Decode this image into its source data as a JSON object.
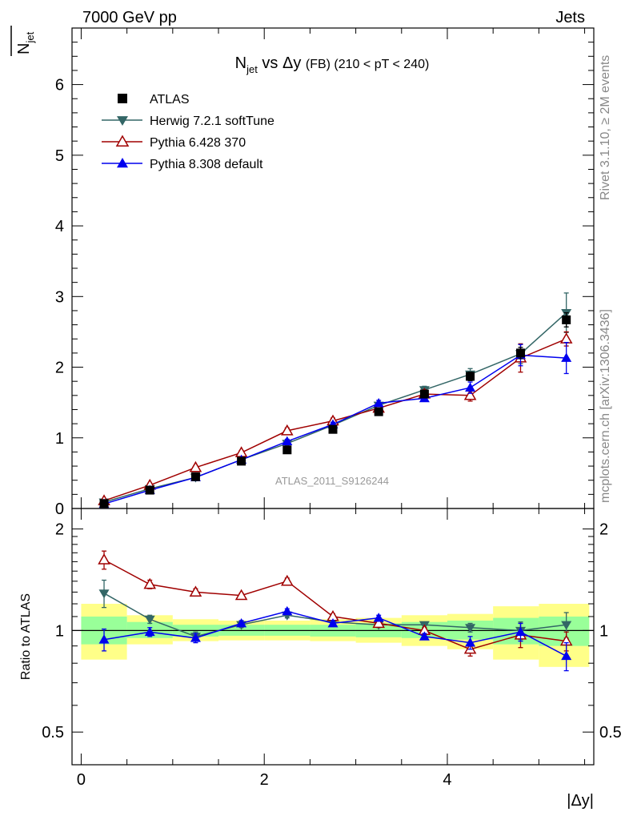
{
  "header": {
    "left": "7000 GeV pp",
    "right": "Jets"
  },
  "side_labels": {
    "rivet": "Rivet 3.1.10, ≥ 2M events",
    "mcplots": "mcplots.cern.ch [arXiv:1306.3436]"
  },
  "chart_data": [
    {
      "type": "line",
      "panel": "main",
      "title": {
        "main": "N",
        "sub": "jet",
        "mid": " vs Δy ",
        "small": "(FB)",
        "range": " (210 < pT < 240)"
      },
      "ylabel": {
        "main": "N",
        "sub": "jet"
      },
      "watermark": "ATLAS_2011_S9126244",
      "xlim": [
        -0.1,
        5.6
      ],
      "ylim": [
        0,
        6.8
      ],
      "yticks": [
        0,
        1,
        2,
        3,
        4,
        5,
        6
      ],
      "yticklabels": [
        "0",
        "1",
        "2",
        "3",
        "4",
        "5",
        "6"
      ],
      "legend_position": "top-left",
      "series": [
        {
          "name": "ATLAS",
          "color": "#000000",
          "marker": "square",
          "x": [
            0.25,
            0.75,
            1.25,
            1.75,
            2.25,
            2.75,
            3.25,
            3.75,
            4.25,
            4.8,
            5.3
          ],
          "y": [
            0.07,
            0.26,
            0.45,
            0.67,
            0.83,
            1.12,
            1.37,
            1.62,
            1.87,
            2.2,
            2.67
          ],
          "err": [
            0.01,
            0.01,
            0.02,
            0.02,
            0.03,
            0.03,
            0.04,
            0.05,
            0.06,
            0.08,
            0.1
          ]
        },
        {
          "name": "Herwig 7.2.1 softTune",
          "color": "#336666",
          "marker": "triangle-down",
          "x": [
            0.25,
            0.75,
            1.25,
            1.75,
            2.25,
            2.75,
            3.25,
            3.75,
            4.25,
            4.8,
            5.3
          ],
          "y": [
            0.09,
            0.28,
            0.44,
            0.69,
            0.92,
            1.18,
            1.46,
            1.68,
            1.9,
            2.19,
            2.77
          ],
          "err": [
            0.01,
            0.01,
            0.02,
            0.02,
            0.03,
            0.03,
            0.04,
            0.05,
            0.08,
            0.14,
            0.28
          ]
        },
        {
          "name": "Pythia 6.428 370",
          "color": "#a00000",
          "marker": "triangle-up-open",
          "x": [
            0.25,
            0.75,
            1.25,
            1.75,
            2.25,
            2.75,
            3.25,
            3.75,
            4.25,
            4.8,
            5.3
          ],
          "y": [
            0.11,
            0.33,
            0.58,
            0.79,
            1.1,
            1.24,
            1.42,
            1.62,
            1.6,
            2.13,
            2.4
          ],
          "err": [
            0.01,
            0.02,
            0.02,
            0.03,
            0.04,
            0.04,
            0.05,
            0.06,
            0.08,
            0.2,
            0.1
          ]
        },
        {
          "name": "Pythia 8.308 default",
          "color": "#0000ee",
          "marker": "triangle-up",
          "x": [
            0.25,
            0.75,
            1.25,
            1.75,
            2.25,
            2.75,
            3.25,
            3.75,
            4.25,
            4.8,
            5.3
          ],
          "y": [
            0.065,
            0.26,
            0.44,
            0.69,
            0.95,
            1.19,
            1.49,
            1.56,
            1.71,
            2.17,
            2.13
          ],
          "err": [
            0.01,
            0.01,
            0.02,
            0.02,
            0.03,
            0.03,
            0.04,
            0.04,
            0.08,
            0.15,
            0.22
          ]
        }
      ]
    },
    {
      "type": "line",
      "panel": "ratio",
      "ylabel": "Ratio to ATLAS",
      "xlabel": "|Δy|",
      "xlim": [
        -0.1,
        5.6
      ],
      "ylim": [
        0.4,
        2.3
      ],
      "log_y": true,
      "xticks": [
        0,
        2,
        4
      ],
      "xticklabels": [
        "0",
        "2",
        "4"
      ],
      "yticks": [
        0.5,
        1,
        2
      ],
      "yticklabels": [
        "0.5",
        "1",
        "2"
      ],
      "bands": {
        "edges": [
          0,
          0.5,
          1,
          1.5,
          2,
          2.5,
          3,
          3.5,
          4,
          4.5,
          5,
          5.55
        ],
        "inner": [
          [
            0.91,
            1.1
          ],
          [
            0.95,
            1.06
          ],
          [
            0.96,
            1.04
          ],
          [
            0.965,
            1.04
          ],
          [
            0.965,
            1.04
          ],
          [
            0.96,
            1.04
          ],
          [
            0.955,
            1.05
          ],
          [
            0.95,
            1.06
          ],
          [
            0.94,
            1.07
          ],
          [
            0.91,
            1.09
          ],
          [
            0.9,
            1.1
          ]
        ],
        "outer": [
          [
            0.82,
            1.2
          ],
          [
            0.91,
            1.11
          ],
          [
            0.93,
            1.08
          ],
          [
            0.935,
            1.07
          ],
          [
            0.935,
            1.07
          ],
          [
            0.93,
            1.08
          ],
          [
            0.92,
            1.09
          ],
          [
            0.9,
            1.11
          ],
          [
            0.88,
            1.12
          ],
          [
            0.82,
            1.18
          ],
          [
            0.78,
            1.2
          ]
        ],
        "inner_color": "#99ff99",
        "outer_color": "#ffff88"
      },
      "series": [
        {
          "name": "Herwig 7.2.1 softTune",
          "color": "#336666",
          "marker": "triangle-down",
          "x": [
            0.25,
            0.75,
            1.25,
            1.75,
            2.25,
            2.75,
            3.25,
            3.75,
            4.25,
            4.8,
            5.3
          ],
          "y": [
            1.29,
            1.08,
            0.96,
            1.04,
            1.11,
            1.06,
            1.04,
            1.04,
            1.02,
            1.0,
            1.04
          ],
          "err": [
            0.12,
            0.03,
            0.03,
            0.02,
            0.02,
            0.02,
            0.02,
            0.02,
            0.03,
            0.06,
            0.09
          ]
        },
        {
          "name": "Pythia 6.428 370",
          "color": "#a00000",
          "marker": "triangle-up-open",
          "x": [
            0.25,
            0.75,
            1.25,
            1.75,
            2.25,
            2.75,
            3.25,
            3.75,
            4.25,
            4.8,
            5.3
          ],
          "y": [
            1.62,
            1.37,
            1.3,
            1.27,
            1.4,
            1.1,
            1.05,
            1.0,
            0.88,
            0.97,
            0.93
          ],
          "err": [
            0.1,
            0.04,
            0.03,
            0.02,
            0.03,
            0.02,
            0.02,
            0.02,
            0.04,
            0.08,
            0.06
          ]
        },
        {
          "name": "Pythia 8.308 default",
          "color": "#0000ee",
          "marker": "triangle-up",
          "x": [
            0.25,
            0.75,
            1.25,
            1.75,
            2.25,
            2.75,
            3.25,
            3.75,
            4.25,
            4.8,
            5.3
          ],
          "y": [
            0.94,
            0.99,
            0.95,
            1.05,
            1.14,
            1.05,
            1.09,
            0.96,
            0.92,
            0.99,
            0.84
          ],
          "err": [
            0.07,
            0.03,
            0.03,
            0.02,
            0.02,
            0.02,
            0.02,
            0.02,
            0.04,
            0.06,
            0.08
          ]
        }
      ]
    }
  ]
}
